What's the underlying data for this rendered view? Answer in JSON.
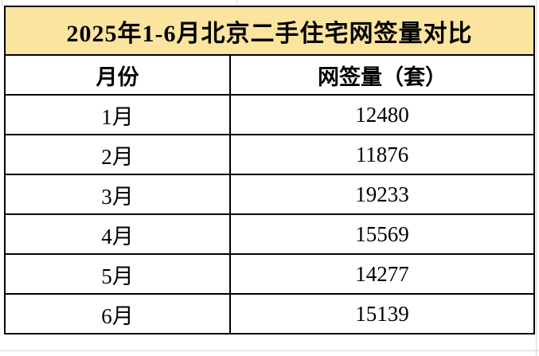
{
  "title": "2025年1-6月北京二手住宅网签量对比",
  "table": {
    "headers": {
      "month": "月份",
      "volume": "网签量（套）"
    },
    "rows": [
      {
        "month": "1月",
        "value": "12480"
      },
      {
        "month": "2月",
        "value": "11876"
      },
      {
        "month": "3月",
        "value": "19233"
      },
      {
        "month": "4月",
        "value": "15569"
      },
      {
        "month": "5月",
        "value": "14277"
      },
      {
        "month": "6月",
        "value": "15139"
      }
    ]
  },
  "chart_data": {
    "type": "table",
    "title": "2025年1-6月北京二手住宅网签量对比",
    "columns": [
      "月份",
      "网签量（套）"
    ],
    "categories": [
      "1月",
      "2月",
      "3月",
      "4月",
      "5月",
      "6月"
    ],
    "values": [
      12480,
      11876,
      19233,
      15569,
      14277,
      15139
    ],
    "unit": "套"
  },
  "colors": {
    "title_bg": "#FBE49E",
    "border": "#000000",
    "gridline": "#D9D9D9",
    "text": "#000000"
  }
}
